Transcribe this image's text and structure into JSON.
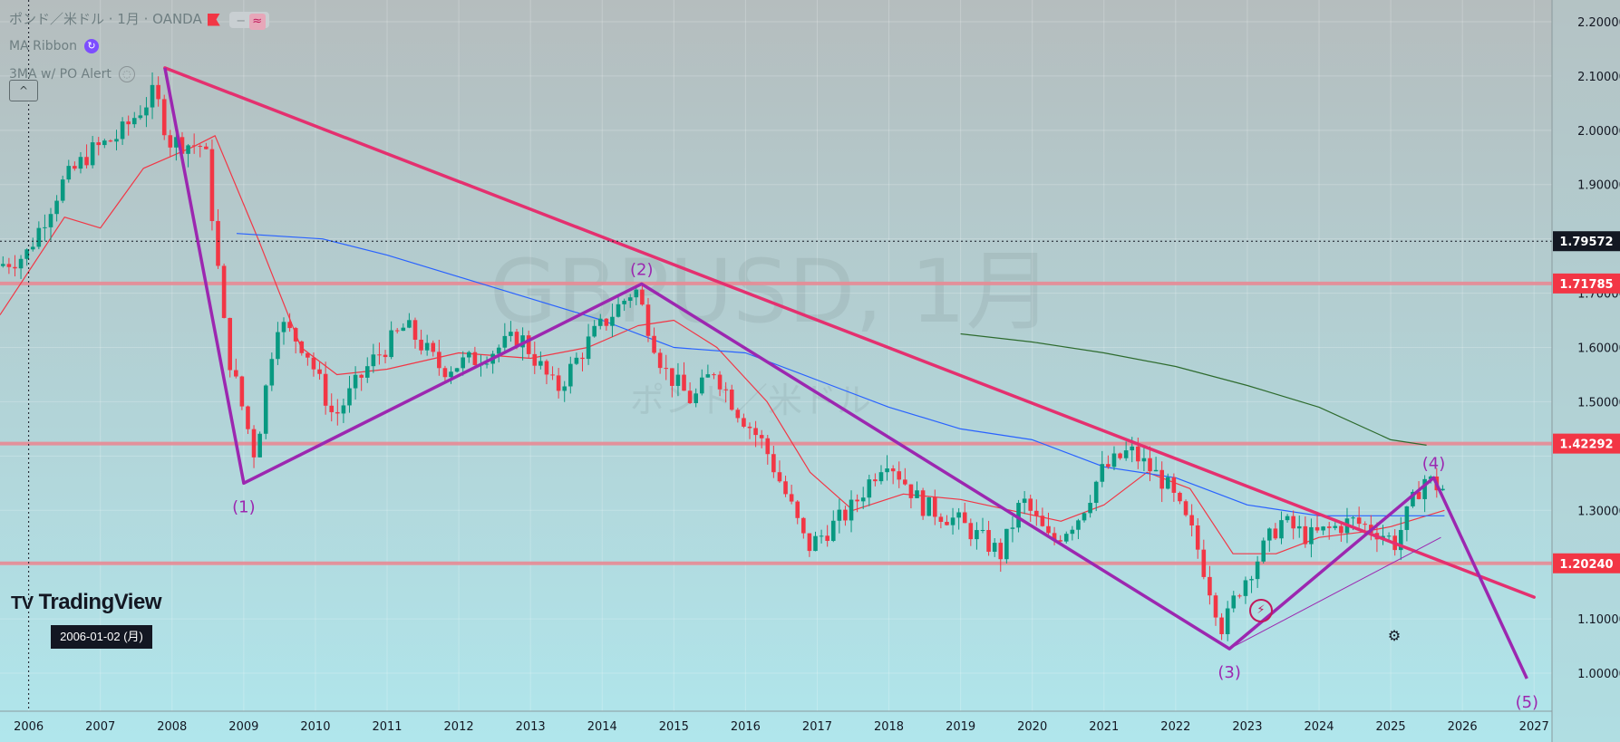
{
  "header": {
    "symbol_title": "ポンド／米ドル · 1月 · OANDA",
    "pill_minus": "−",
    "pill_wave": "≈",
    "indicator1": "MA Ribbon",
    "indicator2": "3MA w/ PO Alert",
    "collapse_icon": "^"
  },
  "watermark": {
    "symbol": "GBPUSD, 1月",
    "name": "ポンド／米ドル"
  },
  "logo": {
    "text": "TradingView",
    "mark": "TV"
  },
  "crosshair": {
    "date_label": "2006-01-02 (月)"
  },
  "icons": {
    "alert": "⚡",
    "settings": "⚙"
  },
  "colors": {
    "background_top": "#b5bdbe",
    "background_bottom": "#b0e6ec",
    "up_candle": "#089981",
    "down_candle": "#f23645",
    "trendline": "#e4306f",
    "elliott": "#9c27b0",
    "hline": "#e88a94",
    "ma_red": "#f23645",
    "ma_blue": "#2962ff",
    "ma_green": "#2e6b2e",
    "price_label_red": "#f23645",
    "price_label_dark": "#131722"
  },
  "chart_data": {
    "type": "candlestick",
    "timeframe": "1 month",
    "x_range": [
      2005.6,
      2027.25
    ],
    "ylim": [
      0.93,
      2.24
    ],
    "x_ticks": [
      "2006",
      "2007",
      "2008",
      "2009",
      "2010",
      "2011",
      "2012",
      "2013",
      "2014",
      "2015",
      "2016",
      "2017",
      "2018",
      "2019",
      "2020",
      "2021",
      "2022",
      "2023",
      "2024",
      "2025",
      "2026",
      "2027"
    ],
    "y_ticks": [
      {
        "value": 2.2,
        "label": "2.20000"
      },
      {
        "value": 2.1,
        "label": "2.10000"
      },
      {
        "value": 2.0,
        "label": "2.00000"
      },
      {
        "value": 1.9,
        "label": "1.90000"
      },
      {
        "value": 1.7,
        "label": "1.70000"
      },
      {
        "value": 1.6,
        "label": "1.60000"
      },
      {
        "value": 1.5,
        "label": "1.50000"
      },
      {
        "value": 1.3,
        "label": "1.30000"
      },
      {
        "value": 1.1,
        "label": "1.10000"
      },
      {
        "value": 1.0,
        "label": "1.00000"
      }
    ],
    "price_labels": [
      {
        "value": 1.79572,
        "label": "1.79572",
        "style": "dark"
      },
      {
        "value": 1.71785,
        "label": "1.71785",
        "style": "red"
      },
      {
        "value": 1.42292,
        "label": "1.42292",
        "style": "red"
      },
      {
        "value": 1.2024,
        "label": "1.20240",
        "style": "red"
      }
    ],
    "crosshair_price": 1.79572,
    "crosshair_x": 2006.0,
    "horizontal_lines": [
      1.71785,
      1.42292,
      1.2024
    ],
    "trendline": [
      [
        2007.9,
        2.115
      ],
      [
        2027.0,
        1.14
      ]
    ],
    "elliott_wave": [
      {
        "x": 2007.9,
        "y": 2.115,
        "label": ""
      },
      {
        "x": 2009.0,
        "y": 1.35,
        "label": "(1)"
      },
      {
        "x": 2014.55,
        "y": 1.717,
        "label": "(2)"
      },
      {
        "x": 2022.75,
        "y": 1.045,
        "label": "(3)"
      },
      {
        "x": 2025.6,
        "y": 1.36,
        "label": "(4)"
      },
      {
        "x": 2026.9,
        "y": 0.99,
        "label": "(5)"
      }
    ],
    "thin_channel_line": [
      [
        2022.75,
        1.045
      ],
      [
        2025.7,
        1.25
      ]
    ],
    "anchor_prices": [
      [
        2005.6,
        1.75
      ],
      [
        2006.0,
        1.77
      ],
      [
        2006.5,
        1.9
      ],
      [
        2006.9,
        1.96
      ],
      [
        2007.3,
        1.99
      ],
      [
        2007.8,
        2.07
      ],
      [
        2008.0,
        1.98
      ],
      [
        2008.5,
        1.97
      ],
      [
        2008.8,
        1.6
      ],
      [
        2009.2,
        1.4
      ],
      [
        2009.5,
        1.65
      ],
      [
        2009.9,
        1.6
      ],
      [
        2010.3,
        1.47
      ],
      [
        2010.8,
        1.57
      ],
      [
        2011.3,
        1.64
      ],
      [
        2011.8,
        1.56
      ],
      [
        2012.3,
        1.58
      ],
      [
        2012.9,
        1.62
      ],
      [
        2013.4,
        1.52
      ],
      [
        2013.9,
        1.62
      ],
      [
        2014.5,
        1.71
      ],
      [
        2014.9,
        1.56
      ],
      [
        2015.3,
        1.5
      ],
      [
        2015.6,
        1.56
      ],
      [
        2015.9,
        1.49
      ],
      [
        2016.3,
        1.42
      ],
      [
        2016.7,
        1.3
      ],
      [
        2016.9,
        1.23
      ],
      [
        2017.5,
        1.3
      ],
      [
        2018.0,
        1.4
      ],
      [
        2018.5,
        1.31
      ],
      [
        2019.0,
        1.28
      ],
      [
        2019.6,
        1.22
      ],
      [
        2019.9,
        1.32
      ],
      [
        2020.3,
        1.24
      ],
      [
        2020.7,
        1.29
      ],
      [
        2021.0,
        1.37
      ],
      [
        2021.4,
        1.41
      ],
      [
        2021.9,
        1.35
      ],
      [
        2022.3,
        1.25
      ],
      [
        2022.7,
        1.08
      ],
      [
        2022.9,
        1.15
      ],
      [
        2023.5,
        1.28
      ],
      [
        2023.9,
        1.25
      ],
      [
        2024.5,
        1.28
      ],
      [
        2024.9,
        1.26
      ],
      [
        2025.1,
        1.24
      ],
      [
        2025.5,
        1.36
      ],
      [
        2025.75,
        1.34
      ]
    ],
    "ma_red": [
      [
        2005.6,
        1.66
      ],
      [
        2006.5,
        1.84
      ],
      [
        2007.0,
        1.82
      ],
      [
        2007.6,
        1.93
      ],
      [
        2008.3,
        1.97
      ],
      [
        2008.6,
        1.99
      ],
      [
        2009.2,
        1.8
      ],
      [
        2009.8,
        1.6
      ],
      [
        2010.3,
        1.55
      ],
      [
        2011.0,
        1.56
      ],
      [
        2012.0,
        1.59
      ],
      [
        2013.0,
        1.58
      ],
      [
        2013.8,
        1.6
      ],
      [
        2014.5,
        1.64
      ],
      [
        2015.0,
        1.65
      ],
      [
        2015.6,
        1.6
      ],
      [
        2016.3,
        1.5
      ],
      [
        2016.9,
        1.37
      ],
      [
        2017.5,
        1.3
      ],
      [
        2018.2,
        1.33
      ],
      [
        2019.0,
        1.32
      ],
      [
        2019.7,
        1.3
      ],
      [
        2020.4,
        1.28
      ],
      [
        2021.0,
        1.31
      ],
      [
        2021.6,
        1.37
      ],
      [
        2022.2,
        1.34
      ],
      [
        2022.8,
        1.22
      ],
      [
        2023.4,
        1.22
      ],
      [
        2024.0,
        1.25
      ],
      [
        2024.6,
        1.26
      ],
      [
        2025.0,
        1.27
      ],
      [
        2025.5,
        1.29
      ],
      [
        2025.75,
        1.3
      ]
    ],
    "ma_blue": [
      [
        2008.9,
        1.81
      ],
      [
        2010.1,
        1.8
      ],
      [
        2011.0,
        1.77
      ],
      [
        2012.0,
        1.73
      ],
      [
        2013.0,
        1.69
      ],
      [
        2014.0,
        1.65
      ],
      [
        2015.0,
        1.6
      ],
      [
        2016.0,
        1.59
      ],
      [
        2017.0,
        1.54
      ],
      [
        2018.0,
        1.49
      ],
      [
        2019.0,
        1.45
      ],
      [
        2020.0,
        1.43
      ],
      [
        2021.0,
        1.38
      ],
      [
        2022.0,
        1.36
      ],
      [
        2023.0,
        1.31
      ],
      [
        2024.0,
        1.29
      ],
      [
        2025.0,
        1.29
      ],
      [
        2025.75,
        1.29
      ]
    ],
    "ma_green": [
      [
        2019.0,
        1.625
      ],
      [
        2020.0,
        1.61
      ],
      [
        2021.0,
        1.59
      ],
      [
        2022.0,
        1.565
      ],
      [
        2023.0,
        1.53
      ],
      [
        2024.0,
        1.49
      ],
      [
        2025.0,
        1.43
      ],
      [
        2025.5,
        1.42
      ]
    ]
  }
}
